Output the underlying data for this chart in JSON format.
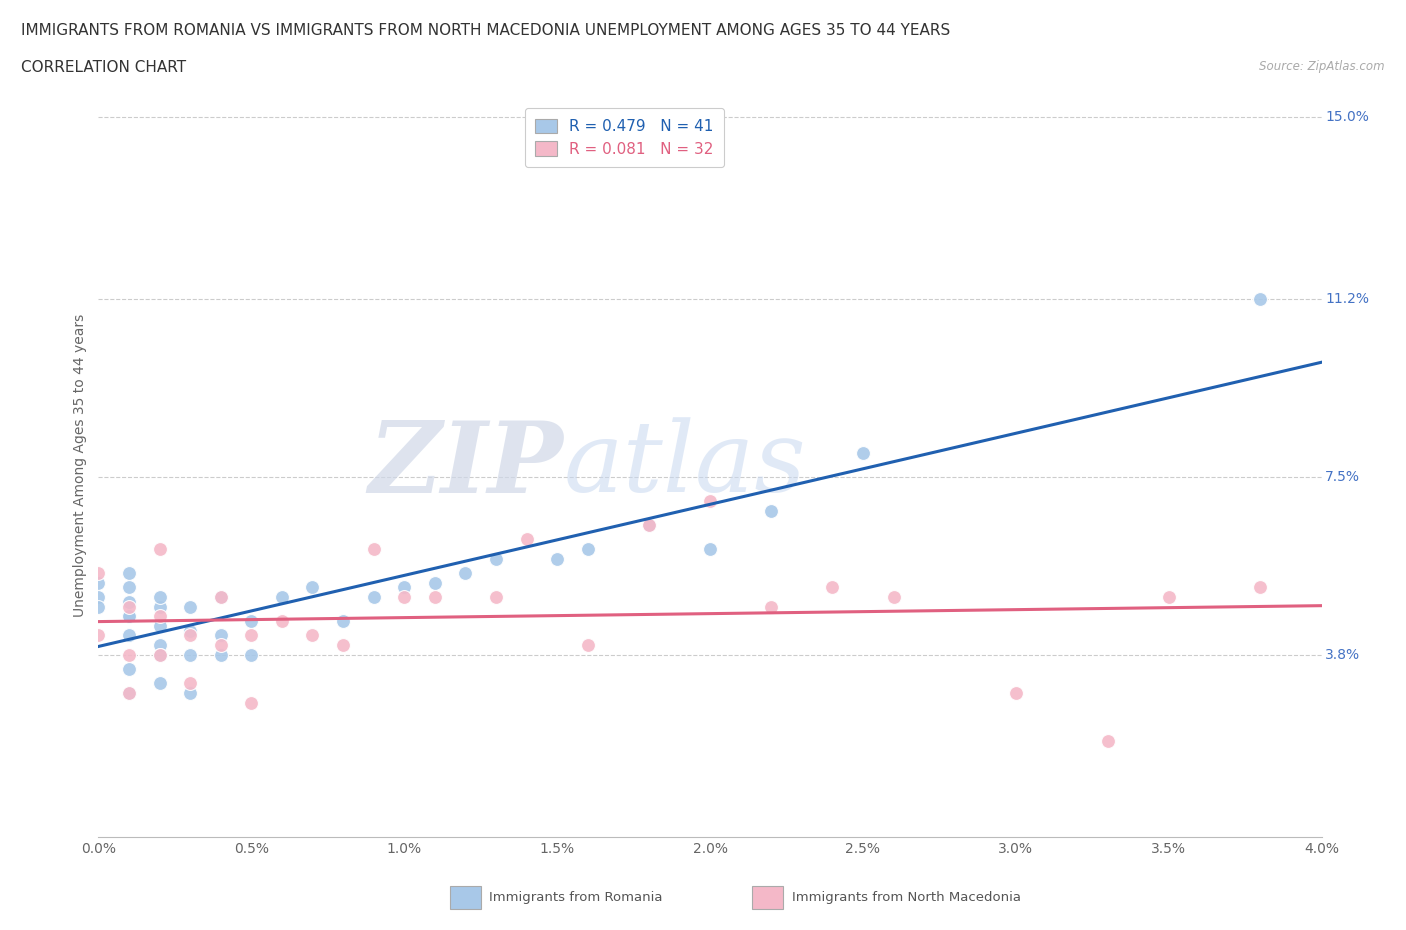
{
  "title_line1": "IMMIGRANTS FROM ROMANIA VS IMMIGRANTS FROM NORTH MACEDONIA UNEMPLOYMENT AMONG AGES 35 TO 44 YEARS",
  "title_line2": "CORRELATION CHART",
  "source_text": "Source: ZipAtlas.com",
  "ylabel": "Unemployment Among Ages 35 to 44 years",
  "xlim": [
    0.0,
    0.04
  ],
  "ylim": [
    0.0,
    0.155
  ],
  "xtick_labels": [
    "0.0%",
    "0.5%",
    "1.0%",
    "1.5%",
    "2.0%",
    "2.5%",
    "3.0%",
    "3.5%",
    "4.0%"
  ],
  "xtick_values": [
    0.0,
    0.005,
    0.01,
    0.015,
    0.02,
    0.025,
    0.03,
    0.035,
    0.04
  ],
  "ytick_labels": [
    "3.8%",
    "7.5%",
    "11.2%",
    "15.0%"
  ],
  "ytick_values": [
    0.038,
    0.075,
    0.112,
    0.15
  ],
  "romania_color": "#a8c8e8",
  "north_macedonia_color": "#f4b8c8",
  "romania_line_color": "#2060b0",
  "north_macedonia_line_color": "#e06080",
  "romania_R": 0.479,
  "romania_N": 41,
  "north_macedonia_R": 0.081,
  "north_macedonia_N": 32,
  "legend_label_romania": "Immigrants from Romania",
  "legend_label_north_macedonia": "Immigrants from North Macedonia",
  "watermark_zip": "ZIP",
  "watermark_atlas": "atlas",
  "grid_color": "#cccccc",
  "background_color": "#ffffff",
  "title_fontsize": 11,
  "axis_label_fontsize": 10,
  "tick_fontsize": 10,
  "legend_fontsize": 11,
  "romania_x": [
    0.0,
    0.0,
    0.0,
    0.001,
    0.001,
    0.001,
    0.001,
    0.001,
    0.001,
    0.001,
    0.001,
    0.002,
    0.002,
    0.002,
    0.002,
    0.002,
    0.002,
    0.003,
    0.003,
    0.003,
    0.003,
    0.004,
    0.004,
    0.004,
    0.005,
    0.005,
    0.006,
    0.007,
    0.008,
    0.009,
    0.01,
    0.011,
    0.012,
    0.013,
    0.015,
    0.016,
    0.018,
    0.02,
    0.022,
    0.025,
    0.038
  ],
  "romania_y": [
    0.05,
    0.048,
    0.053,
    0.046,
    0.049,
    0.052,
    0.055,
    0.042,
    0.046,
    0.035,
    0.03,
    0.04,
    0.044,
    0.048,
    0.032,
    0.038,
    0.05,
    0.038,
    0.043,
    0.048,
    0.03,
    0.038,
    0.042,
    0.05,
    0.038,
    0.045,
    0.05,
    0.052,
    0.045,
    0.05,
    0.052,
    0.053,
    0.055,
    0.058,
    0.058,
    0.06,
    0.065,
    0.06,
    0.068,
    0.08,
    0.112
  ],
  "north_macedonia_x": [
    0.0,
    0.0,
    0.001,
    0.001,
    0.001,
    0.002,
    0.002,
    0.002,
    0.003,
    0.003,
    0.004,
    0.004,
    0.005,
    0.005,
    0.006,
    0.007,
    0.008,
    0.009,
    0.01,
    0.011,
    0.013,
    0.014,
    0.016,
    0.018,
    0.02,
    0.022,
    0.024,
    0.026,
    0.03,
    0.033,
    0.035,
    0.038
  ],
  "north_macedonia_y": [
    0.042,
    0.055,
    0.038,
    0.048,
    0.03,
    0.038,
    0.046,
    0.06,
    0.042,
    0.032,
    0.04,
    0.05,
    0.042,
    0.028,
    0.045,
    0.042,
    0.04,
    0.06,
    0.05,
    0.05,
    0.05,
    0.062,
    0.04,
    0.065,
    0.07,
    0.048,
    0.052,
    0.05,
    0.03,
    0.02,
    0.05,
    0.052
  ]
}
